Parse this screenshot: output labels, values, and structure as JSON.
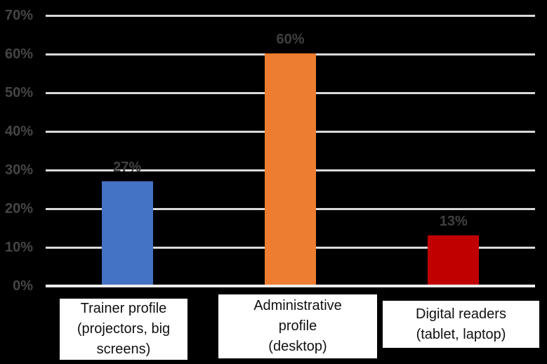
{
  "chart_data": {
    "type": "bar",
    "title": "",
    "xlabel": "",
    "ylabel": "",
    "categories": [
      "Trainer profile (projectors, big screens)",
      "Administrative profile (desktop)",
      "Digital readers (tablet, laptop)"
    ],
    "values": [
      27,
      60,
      13
    ],
    "data_labels": [
      "27%",
      "60%",
      "13%"
    ],
    "bar_colors": [
      "#4472C4",
      "#ED7D31",
      "#C00000"
    ],
    "ylim": [
      0,
      70
    ],
    "ytick_values": [
      0,
      10,
      20,
      30,
      40,
      50,
      60,
      70
    ],
    "yticks": [
      "0%",
      "10%",
      "20%",
      "30%",
      "40%",
      "50%",
      "60%",
      "70%"
    ],
    "grid": true,
    "legend": "none",
    "colors": {
      "background": "#000000",
      "gridline": "#D9D9D9",
      "axis_line": "#ECECEC",
      "tick_label": "#454545",
      "data_label": "#404040",
      "category_box_bg": "#FFFFFF",
      "category_text": "#111111"
    }
  },
  "category_boxes": [
    {
      "lines": [
        "Trainer profile",
        "(projectors, big",
        "screens)"
      ]
    },
    {
      "lines": [
        "Administrative",
        "profile",
        "(desktop)"
      ]
    },
    {
      "lines": [
        "Digital readers",
        "(tablet, laptop)"
      ]
    }
  ]
}
